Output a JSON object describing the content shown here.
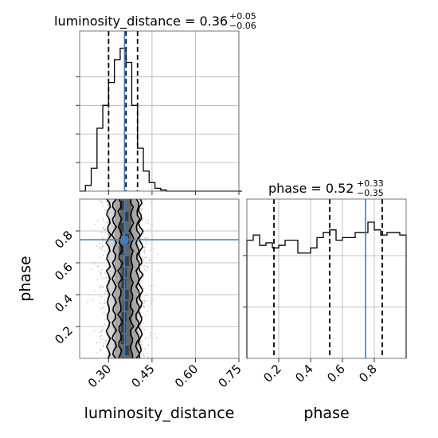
{
  "chart_data": {
    "type": "corner",
    "parameters": [
      "luminosity_distance",
      "phase"
    ],
    "truth_color": "#3e7fbf",
    "panels": {
      "luminosity_distance_1d": {
        "title_name": "luminosity_distance",
        "title_value": "0.36",
        "title_plus": "+0.05",
        "title_minus": "−0.06",
        "xlim": [
          0.2,
          0.75
        ],
        "bin_edges": [
          0.2,
          0.22,
          0.24,
          0.26,
          0.28,
          0.3,
          0.32,
          0.34,
          0.36,
          0.38,
          0.4,
          0.42,
          0.44,
          0.46,
          0.48,
          0.5,
          0.52,
          0.54,
          0.56,
          0.58,
          0.6,
          0.62,
          0.64,
          0.66,
          0.68,
          0.7,
          0.72,
          0.74,
          0.76
        ],
        "counts": [
          0,
          2,
          8,
          22,
          30,
          38,
          46,
          50,
          45,
          30,
          15,
          7,
          3,
          1,
          0.4,
          0,
          0,
          0,
          0,
          0,
          0,
          0,
          0,
          0,
          0,
          0,
          0,
          0
        ],
        "ylim": [
          0,
          56
        ],
        "quantiles": [
          0.3,
          0.36,
          0.4
        ],
        "truth": 0.355,
        "grid": true
      },
      "phase_1d": {
        "title_name": "phase",
        "title_value": "0.52",
        "title_plus": "+0.33",
        "title_minus": "−0.35",
        "xlim": [
          0.0,
          1.0
        ],
        "bin_edges": [
          0.0,
          0.04,
          0.08,
          0.12,
          0.16,
          0.2,
          0.24,
          0.28,
          0.32,
          0.36,
          0.4,
          0.44,
          0.48,
          0.52,
          0.56,
          0.6,
          0.64,
          0.68,
          0.72,
          0.76,
          0.8,
          0.84,
          0.88,
          0.92,
          0.96,
          1.0
        ],
        "counts": [
          46,
          48,
          44,
          45,
          43,
          44,
          46,
          46,
          41,
          41,
          43,
          47,
          49,
          50,
          46,
          47,
          47,
          49,
          49,
          53,
          50,
          48,
          49,
          49,
          48
        ],
        "ylim": [
          0,
          62
        ],
        "quantiles": [
          0.17,
          0.52,
          0.85
        ],
        "truth": 0.745,
        "grid": true
      },
      "joint_2d": {
        "x_param": "luminosity_distance",
        "y_param": "phase",
        "xlim": [
          0.2,
          0.75
        ],
        "ylim": [
          0.0,
          1.0
        ],
        "x_ticks": [
          0.3,
          0.45,
          0.6,
          0.75
        ],
        "x_tick_labels": [
          "0.30",
          "0.45",
          "0.60",
          "0.75"
        ],
        "y_ticks": [
          0.2,
          0.4,
          0.6,
          0.8
        ],
        "y_tick_labels": [
          "0.2",
          "0.4",
          "0.6",
          "0.8"
        ],
        "contour_x_bands": [
          [
            0.3,
            0.41
          ],
          [
            0.32,
            0.4
          ],
          [
            0.34,
            0.38
          ]
        ],
        "truth": [
          0.355,
          0.745
        ],
        "grid": true
      },
      "phase_x_axis": {
        "x_ticks": [
          0.2,
          0.4,
          0.6,
          0.8
        ],
        "x_tick_labels": [
          "0.2",
          "0.4",
          "0.6",
          "0.8"
        ]
      }
    },
    "xlabels": [
      "luminosity_distance",
      "phase"
    ],
    "ylabels": [
      "phase"
    ]
  }
}
